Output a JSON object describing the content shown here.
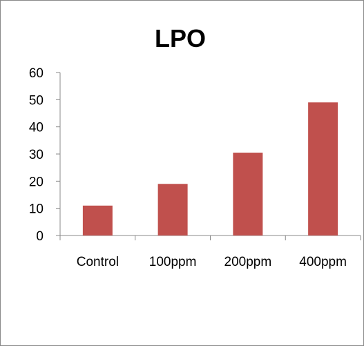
{
  "chart_data": {
    "type": "bar",
    "title": "LPO",
    "categories": [
      "Control",
      "100ppm",
      "200ppm",
      "400ppm"
    ],
    "values": [
      11,
      19,
      30.5,
      49
    ],
    "ylim": [
      0,
      60
    ],
    "yticks": [
      0,
      10,
      20,
      30,
      40,
      50,
      60
    ],
    "xlabel": "",
    "ylabel": "",
    "grid": false,
    "legend": "none",
    "bar_color": "#c0504d",
    "axis_color": "#888888"
  }
}
